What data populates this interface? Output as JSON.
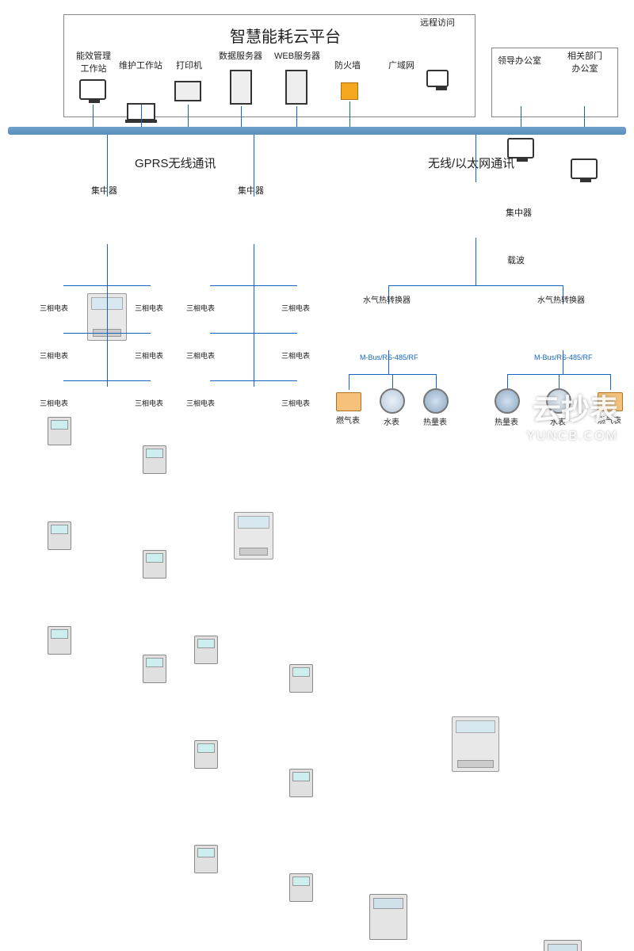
{
  "type": "network",
  "title": "智慧能耗云平台",
  "colors": {
    "bus": "#5a8fbb",
    "line": "#1565c0",
    "border": "#888888",
    "text": "#222222",
    "bg": "#ffffff"
  },
  "top_group": {
    "items": [
      {
        "label": "能效管理\n工作站"
      },
      {
        "label": "维护工作站"
      },
      {
        "label": "打印机"
      },
      {
        "label": "数据服务器"
      },
      {
        "label": "WEB服务器"
      },
      {
        "label": "防火墙"
      },
      {
        "label": "广域网"
      }
    ],
    "remote": {
      "label": "远程访问"
    },
    "right": [
      {
        "label": "领导办公室"
      },
      {
        "label": "相关部门\n办公室"
      }
    ]
  },
  "sections": {
    "left": {
      "title": "GPRS无线通讯"
    },
    "right": {
      "title": "无线/以太网通讯"
    }
  },
  "concentrator_label": "集中器",
  "meter_label": "三相电表",
  "carrier_label": "载波",
  "converter_label": "水气热转换器",
  "bus_label": "M-Bus/RS-485/RF",
  "bottom_meters_left": [
    {
      "label": "燃气表"
    },
    {
      "label": "水表"
    },
    {
      "label": "热量表"
    }
  ],
  "bottom_meters_right": [
    {
      "label": "热量表"
    },
    {
      "label": "水表"
    },
    {
      "label": "燃气表"
    }
  ],
  "watermark": {
    "main": "云抄表",
    "sub": "YUNCB.COM"
  }
}
